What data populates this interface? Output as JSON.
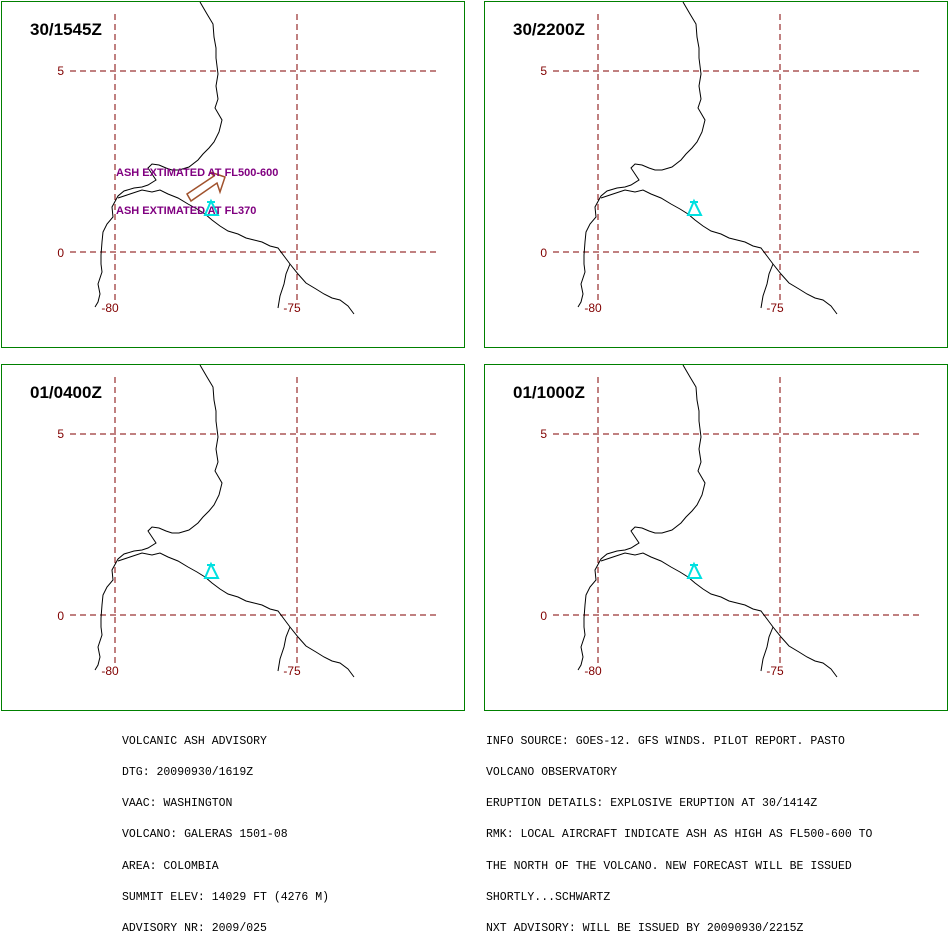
{
  "panels": [
    {
      "time": "30/1545Z",
      "annotations": [
        "ASH EXTIMATED AT FL500-600",
        "ASH EXTIMATED AT FL370"
      ]
    },
    {
      "time": "30/2200Z",
      "annotations": []
    },
    {
      "time": "01/0400Z",
      "annotations": []
    },
    {
      "time": "01/1000Z",
      "annotations": []
    }
  ],
  "grid_labels": {
    "lat": [
      "5",
      "0"
    ],
    "lon": [
      "-80",
      "-75"
    ]
  },
  "colors": {
    "frame": "#008000",
    "grid": "#800000",
    "coast": "#000000",
    "volcano": "#00e0e0",
    "annotation": "#800080",
    "ash_arrow": "#a0522d"
  },
  "volcano_icon": "volcano-triangle-icon",
  "advisory_left": [
    "VOLCANIC ASH ADVISORY",
    "DTG: 20090930/1619Z",
    "VAAC: WASHINGTON",
    "VOLCANO: GALERAS 1501-08",
    "AREA: COLOMBIA",
    "SUMMIT ELEV: 14029 FT (4276 M)",
    "ADVISORY NR: 2009/025"
  ],
  "advisory_right": [
    "INFO SOURCE: GOES-12. GFS WINDS. PILOT REPORT. PASTO",
    "VOLCANO OBSERVATORY",
    "ERUPTION DETAILS: EXPLOSIVE ERUPTION AT 30/1414Z",
    "RMK: LOCAL AIRCRAFT INDICATE ASH AS HIGH AS FL500-600 TO",
    "THE NORTH OF THE VOLCANO. NEW FORECAST WILL BE ISSUED",
    "SHORTLY...SCHWARTZ",
    "NXT ADVISORY: WILL BE ISSUED BY 20090930/2215Z"
  ]
}
